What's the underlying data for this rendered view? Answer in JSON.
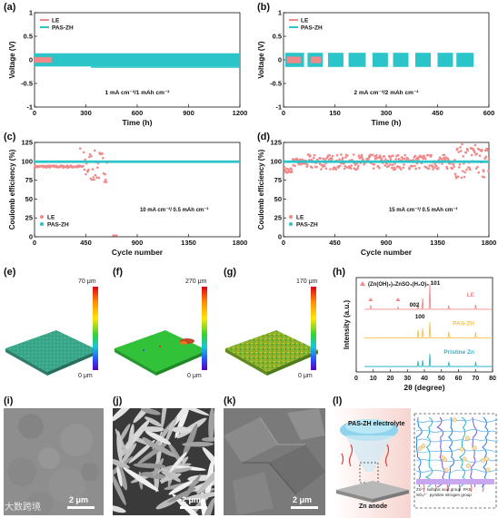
{
  "panels": {
    "a": {
      "label": "(a)",
      "chart_data": {
        "type": "line",
        "xlabel": "Time (h)",
        "ylabel": "Voltage (V)",
        "xlim": [
          0,
          1200
        ],
        "ylim": [
          -1.0,
          1.0
        ],
        "xticks": [
          0,
          300,
          600,
          900,
          1200
        ],
        "yticks": [
          -1.0,
          -0.5,
          0.0,
          0.5,
          1.0
        ],
        "legend": [
          "LE",
          "PAS-ZH"
        ],
        "annotation": "1 mA cm⁻²/1 mAh cm⁻²",
        "series": [
          {
            "name": "LE",
            "x_range": [
              0,
              100
            ],
            "amplitude": 0.06
          },
          {
            "name": "PAS-ZH",
            "x_range": [
              0,
              1200
            ],
            "amplitude": 0.14
          }
        ]
      }
    },
    "b": {
      "label": "(b)",
      "chart_data": {
        "type": "line",
        "xlabel": "Time (h)",
        "ylabel": "Voltage (V)",
        "xlim": [
          0,
          600
        ],
        "ylim": [
          -1.0,
          1.0
        ],
        "xticks": [
          0,
          150,
          300,
          450,
          600
        ],
        "yticks": [
          -1.0,
          -0.5,
          0.0,
          0.5,
          1.0
        ],
        "legend": [
          "LE",
          "PAS-ZH"
        ],
        "annotation": "2 mA cm⁻²/2 mAh cm⁻²",
        "series": [
          {
            "name": "LE",
            "segments": [
              [
                10,
                50
              ],
              [
                80,
                110
              ]
            ],
            "amplitude": 0.07
          },
          {
            "name": "PAS-ZH",
            "segments": [
              [
                5,
                60
              ],
              [
                70,
                115
              ],
              [
                130,
                175
              ],
              [
                190,
                240
              ],
              [
                260,
                305
              ],
              [
                320,
                365
              ],
              [
                385,
                430
              ],
              [
                450,
                495
              ],
              [
                505,
                555
              ]
            ],
            "amplitude": 0.15
          }
        ]
      }
    },
    "c": {
      "label": "(c)",
      "chart_data": {
        "type": "scatter",
        "xlabel": "Cycle number",
        "ylabel": "Coulomb efficiency (%)",
        "xlim": [
          0,
          1800
        ],
        "ylim": [
          0,
          125
        ],
        "xticks": [
          0,
          450,
          900,
          1350,
          1800
        ],
        "yticks": [
          0,
          25,
          50,
          75,
          100,
          125
        ],
        "legend": [
          "LE",
          "PAS-ZH"
        ],
        "annotation": "10 mA cm⁻²/ 0.5 mAh cm⁻²",
        "series": [
          {
            "name": "LE",
            "x_range": [
              0,
              640
            ],
            "baseline": 93,
            "scatter_from": 430,
            "spread": 30
          },
          {
            "name": "PAS-ZH",
            "x_range": [
              0,
              1800
            ],
            "baseline": 99.5
          }
        ]
      }
    },
    "d": {
      "label": "(d)",
      "chart_data": {
        "type": "scatter",
        "xlabel": "Cycle number",
        "ylabel": "Coulomb efficiency (%)",
        "xlim": [
          0,
          1800
        ],
        "ylim": [
          0,
          125
        ],
        "xticks": [
          0,
          450,
          900,
          1350,
          1800
        ],
        "yticks": [
          0,
          25,
          50,
          75,
          100,
          125
        ],
        "legend": [
          "LE",
          "PAS-ZH"
        ],
        "annotation": "15 mA cm⁻²/ 0.5 mAh cm⁻²",
        "series": [
          {
            "name": "LE",
            "x_range": [
              0,
              1800
            ],
            "baseline": 98,
            "spread": 20
          },
          {
            "name": "PAS-ZH",
            "x_range": [
              0,
              1800
            ],
            "baseline": 99.5
          }
        ]
      }
    },
    "e": {
      "label": "(e)",
      "cbar_max": "70 μm",
      "cbar_min": "0 μm",
      "surface_color": "#3fa889"
    },
    "f": {
      "label": "(f)",
      "cbar_max": "270 μm",
      "cbar_min": "0 μm",
      "surface_color": "#33c233"
    },
    "g": {
      "label": "(g)",
      "cbar_max": "170 μm",
      "cbar_min": "0 μm",
      "surface_color": "#8fb52a"
    },
    "h": {
      "label": "(h)",
      "chart_data": {
        "type": "line",
        "xlabel": "2θ (degree)",
        "ylabel": "Intensity (a.u.)",
        "xlim": [
          0,
          80
        ],
        "xticks": [
          0,
          10,
          20,
          30,
          40,
          50,
          60,
          70,
          80
        ],
        "legend": [
          "(Zn(OH)₂)₃ZnSO₄(H₂O)₅"
        ],
        "peak_labels": [
          "002",
          "100",
          "101"
        ],
        "series": [
          {
            "name": "LE",
            "color": "#f08a8a",
            "offset": 2,
            "peaks": [
              [
                8.5,
                0.25
              ],
              [
                24.5,
                0.15
              ],
              [
                36.3,
                0.3
              ],
              [
                39.0,
                0.7
              ],
              [
                43.2,
                1.6
              ],
              [
                54.3,
                0.25
              ],
              [
                70.1,
                0.3
              ]
            ]
          },
          {
            "name": "PAS-ZH",
            "color": "#f5c14a",
            "offset": 1,
            "peaks": [
              [
                36.3,
                0.5
              ],
              [
                39.0,
                0.6
              ],
              [
                43.2,
                1.0
              ],
              [
                54.3,
                0.4
              ],
              [
                70.1,
                0.35
              ]
            ]
          },
          {
            "name": "Pristine Zn",
            "color": "#2bb6c4",
            "offset": 0,
            "peaks": [
              [
                36.3,
                0.35
              ],
              [
                39.0,
                0.4
              ],
              [
                43.2,
                0.8
              ],
              [
                54.3,
                0.3
              ],
              [
                70.1,
                0.3
              ]
            ]
          }
        ]
      }
    },
    "i": {
      "label": "(i)",
      "scale": "2 μm"
    },
    "j": {
      "label": "(j)",
      "scale": "2 μm"
    },
    "k": {
      "label": "(k)",
      "scale": "2 μm"
    },
    "l": {
      "label": "(l)",
      "electrolyte_label": "PAS-ZH electrolyte",
      "anode_label": "Zn anode",
      "legend": [
        {
          "text": "Zn²⁺"
        },
        {
          "text": "sulfonic acid group"
        },
        {
          "text": "PAS"
        },
        {
          "text": "SO₄²⁻"
        },
        {
          "text": "pyridine nitrogen group"
        }
      ]
    }
  },
  "colors": {
    "le": "#f08a8a",
    "pas": "#2bc4c8"
  },
  "watermark": "大数跨境"
}
